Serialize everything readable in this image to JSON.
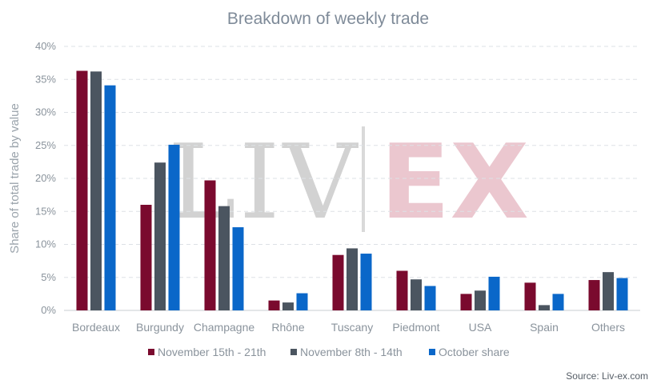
{
  "chart_data": {
    "type": "bar",
    "title": "Breakdown of weekly trade",
    "ylabel": "Share of total trade by value",
    "xlabel": "",
    "ylim": [
      0,
      40
    ],
    "yticks": [
      "0%",
      "5%",
      "10%",
      "15%",
      "20%",
      "25%",
      "30%",
      "35%",
      "40%"
    ],
    "grid": true,
    "legend_position": "bottom",
    "categories": [
      "Bordeaux",
      "Burgundy",
      "Champagne",
      "Rhône",
      "Tuscany",
      "Piedmont",
      "USA",
      "Spain",
      "Others"
    ],
    "series": [
      {
        "name": "November 15th - 21th",
        "color": "#7a0a2e",
        "values": [
          36.3,
          16.0,
          19.7,
          1.5,
          8.4,
          6.0,
          2.5,
          4.2,
          4.6
        ]
      },
      {
        "name": "November 8th - 14th",
        "color": "#4b5560",
        "values": [
          36.2,
          22.4,
          15.8,
          1.2,
          9.4,
          4.7,
          3.0,
          0.8,
          5.8
        ]
      },
      {
        "name": "October share",
        "color": "#0a67c9",
        "values": [
          34.1,
          25.1,
          12.6,
          2.6,
          8.6,
          3.7,
          5.1,
          2.5,
          4.9
        ]
      }
    ],
    "watermark": {
      "left": "LIV",
      "right": "EX"
    },
    "source": "Source: Liv-ex.com"
  }
}
